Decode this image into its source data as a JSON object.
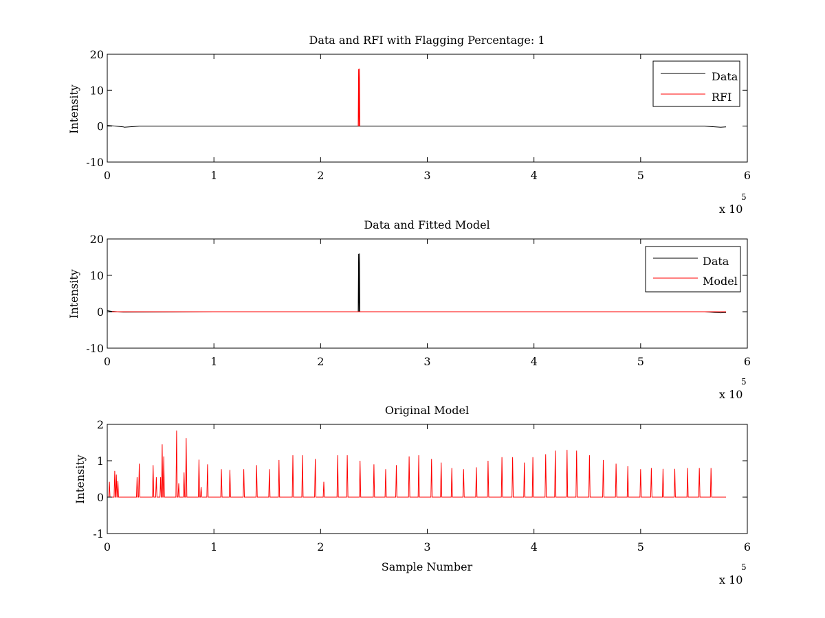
{
  "chart_data": [
    {
      "type": "line",
      "title": "Data and RFI with Flagging Percentage: 1",
      "xlabel": "",
      "ylabel": "Intensity",
      "xlim": [
        0,
        600000
      ],
      "ylim": [
        -10,
        20
      ],
      "x_ticks": [
        0,
        1,
        2,
        3,
        4,
        5,
        6
      ],
      "y_ticks": [
        20,
        10,
        0,
        -10
      ],
      "x_exponent": "x 10",
      "x_exponent_power": "5",
      "grid": false,
      "legend_position": "top-right",
      "series": [
        {
          "name": "Data",
          "color": "#000000",
          "x": [
            0,
            4000,
            15000,
            16000,
            30000,
            60000,
            100000,
            150000,
            200000,
            236000,
            240000,
            300000,
            400000,
            500000,
            560000,
            575000,
            580000
          ],
          "values": [
            0.2,
            0.1,
            -0.2,
            -0.3,
            0,
            0,
            0,
            0,
            0,
            0,
            0,
            0,
            0,
            0,
            0,
            -0.3,
            -0.2
          ]
        },
        {
          "name": "RFI",
          "color": "#ff0000",
          "x": [
            235200,
            235600,
            236000,
            236400,
            236800
          ],
          "values": [
            0,
            15.9,
            0,
            16.0,
            0
          ]
        }
      ]
    },
    {
      "type": "line",
      "title": "Data and Fitted Model",
      "xlabel": "",
      "ylabel": "Intensity",
      "xlim": [
        0,
        600000
      ],
      "ylim": [
        -10,
        20
      ],
      "x_ticks": [
        0,
        1,
        2,
        3,
        4,
        5,
        6
      ],
      "y_ticks": [
        20,
        10,
        0,
        -10
      ],
      "x_exponent": "x 10",
      "x_exponent_power": "5",
      "grid": false,
      "legend_position": "top-right",
      "series": [
        {
          "name": "Data",
          "color": "#000000",
          "x": [
            0,
            4000,
            15000,
            100000,
            200000,
            235200,
            235600,
            236000,
            236400,
            236800,
            300000,
            400000,
            500000,
            560000,
            575000,
            580000
          ],
          "values": [
            0.3,
            0.1,
            -0.1,
            0,
            0,
            0,
            15.9,
            0,
            16.0,
            0,
            0,
            0,
            0,
            0,
            -0.3,
            -0.2
          ]
        },
        {
          "name": "Model",
          "color": "#ff0000",
          "x": [
            0,
            100000,
            200000,
            300000,
            400000,
            500000,
            580000
          ],
          "values": [
            0,
            0,
            0,
            0,
            0,
            0,
            0
          ]
        }
      ]
    },
    {
      "type": "line",
      "title": "Original Model",
      "xlabel": "Sample Number",
      "ylabel": "Intensity",
      "xlim": [
        0,
        600000
      ],
      "ylim": [
        -1,
        2
      ],
      "x_ticks": [
        0,
        1,
        2,
        3,
        4,
        5,
        6
      ],
      "y_ticks": [
        2,
        1,
        0,
        -1
      ],
      "x_exponent": "x 10",
      "x_exponent_power": "5",
      "grid": false,
      "series": [
        {
          "color": "#ff0000",
          "x_range": [
            0,
            580000
          ],
          "baseline": 0,
          "peaks": [
            [
              2000,
              0.42
            ],
            [
              7000,
              0.72
            ],
            [
              8500,
              0.62
            ],
            [
              10000,
              0.45
            ],
            [
              28000,
              0.55
            ],
            [
              30000,
              0.92
            ],
            [
              43000,
              0.88
            ],
            [
              46000,
              0.55
            ],
            [
              50000,
              0.55
            ],
            [
              51500,
              1.45
            ],
            [
              53000,
              1.12
            ],
            [
              65000,
              1.83
            ],
            [
              67000,
              0.38
            ],
            [
              72000,
              0.68
            ],
            [
              74000,
              1.62
            ],
            [
              86000,
              1.03
            ],
            [
              88000,
              0.28
            ],
            [
              94000,
              0.9
            ],
            [
              107000,
              0.77
            ],
            [
              115000,
              0.75
            ],
            [
              128000,
              0.77
            ],
            [
              140000,
              0.88
            ],
            [
              152000,
              0.77
            ],
            [
              161000,
              1.02
            ],
            [
              174000,
              1.15
            ],
            [
              183000,
              1.15
            ],
            [
              195000,
              1.05
            ],
            [
              203000,
              0.42
            ],
            [
              216000,
              1.15
            ],
            [
              225000,
              1.15
            ],
            [
              237000,
              1.0
            ],
            [
              250000,
              0.9
            ],
            [
              261000,
              0.77
            ],
            [
              271000,
              0.88
            ],
            [
              283000,
              1.12
            ],
            [
              292000,
              1.15
            ],
            [
              304000,
              1.05
            ],
            [
              313000,
              0.95
            ],
            [
              323000,
              0.8
            ],
            [
              334000,
              0.77
            ],
            [
              346000,
              0.82
            ],
            [
              357000,
              1.0
            ],
            [
              370000,
              1.1
            ],
            [
              380000,
              1.1
            ],
            [
              391000,
              0.95
            ],
            [
              399000,
              1.1
            ],
            [
              411000,
              1.18
            ],
            [
              420000,
              1.28
            ],
            [
              431000,
              1.3
            ],
            [
              440000,
              1.28
            ],
            [
              452000,
              1.15
            ],
            [
              465000,
              1.02
            ],
            [
              477000,
              0.92
            ],
            [
              488000,
              0.85
            ],
            [
              500000,
              0.77
            ],
            [
              510000,
              0.8
            ],
            [
              521000,
              0.78
            ],
            [
              532000,
              0.78
            ],
            [
              544000,
              0.8
            ],
            [
              555000,
              0.8
            ],
            [
              566000,
              0.8
            ]
          ]
        }
      ]
    }
  ]
}
